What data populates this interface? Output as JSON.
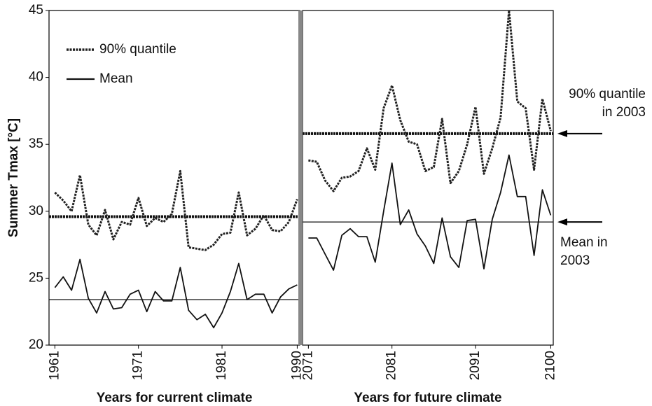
{
  "chart_data": [
    {
      "type": "line",
      "ylabel": "Summer Tmax [°C]",
      "xlabel": "Years for current climate",
      "x": [
        1961,
        1962,
        1963,
        1964,
        1965,
        1966,
        1967,
        1968,
        1969,
        1970,
        1971,
        1972,
        1973,
        1974,
        1975,
        1976,
        1977,
        1978,
        1979,
        1980,
        1981,
        1982,
        1983,
        1984,
        1985,
        1986,
        1987,
        1988,
        1989,
        1990
      ],
      "xlim": [
        1960.3,
        1990.3
      ],
      "xticks": [
        1961,
        1971,
        1981,
        1990
      ],
      "ylim": [
        20,
        45
      ],
      "yticks": [
        20,
        25,
        30,
        35,
        40,
        45
      ],
      "series": [
        {
          "name": "90% quantile",
          "color": "#222222",
          "style": "dotted",
          "values": [
            31.4,
            30.8,
            30.0,
            32.7,
            29.0,
            28.2,
            30.1,
            27.9,
            29.2,
            29.0,
            31.0,
            28.9,
            29.5,
            29.2,
            29.8,
            33.0,
            27.3,
            27.2,
            27.1,
            27.5,
            28.3,
            28.4,
            31.4,
            28.2,
            28.7,
            29.7,
            28.6,
            28.5,
            29.2,
            30.9
          ]
        },
        {
          "name": "Mean",
          "color": "#111111",
          "style": "solid",
          "values": [
            24.3,
            25.1,
            24.1,
            26.4,
            23.5,
            22.4,
            24.0,
            22.7,
            22.8,
            23.8,
            24.1,
            22.5,
            24.0,
            23.3,
            23.3,
            25.8,
            22.6,
            21.9,
            22.3,
            21.3,
            22.4,
            24.0,
            26.1,
            23.4,
            23.8,
            23.8,
            22.4,
            23.6,
            24.2,
            24.5
          ]
        }
      ],
      "reference_lines": [
        {
          "value": 29.6,
          "style": "dotted"
        },
        {
          "value": 23.4,
          "style": "solid"
        }
      ]
    },
    {
      "type": "line",
      "xlabel": "Years for future climate",
      "x": [
        2071,
        2072,
        2073,
        2074,
        2075,
        2076,
        2077,
        2078,
        2079,
        2080,
        2081,
        2082,
        2083,
        2084,
        2085,
        2086,
        2087,
        2088,
        2089,
        2090,
        2091,
        2092,
        2093,
        2094,
        2095,
        2096,
        2097,
        2098,
        2099,
        2100
      ],
      "xlim": [
        2070.3,
        2100.3
      ],
      "xticks": [
        2071,
        2081,
        2091,
        2100
      ],
      "ylim": [
        20,
        45
      ],
      "series": [
        {
          "color": "#222222",
          "style": "dotted",
          "values": [
            33.8,
            33.7,
            32.3,
            31.5,
            32.5,
            32.6,
            33.0,
            34.7,
            33.1,
            37.7,
            39.4,
            36.8,
            35.2,
            35.0,
            33.0,
            33.3,
            36.9,
            32.1,
            33.0,
            35.0,
            37.8,
            32.8,
            34.7,
            37.0,
            45.0,
            38.2,
            37.7,
            33.1,
            38.4,
            36.0
          ]
        },
        {
          "color": "#111111",
          "style": "solid",
          "values": [
            28.0,
            28.0,
            26.8,
            25.6,
            28.2,
            28.7,
            28.1,
            28.1,
            26.2,
            30.0,
            33.6,
            29.0,
            30.1,
            28.3,
            27.4,
            26.1,
            29.5,
            26.6,
            25.8,
            29.3,
            29.4,
            25.7,
            29.4,
            31.4,
            34.2,
            31.1,
            31.1,
            26.7,
            31.6,
            29.7
          ]
        }
      ],
      "reference_lines": [
        {
          "value": 35.8,
          "style": "dotted",
          "label": [
            "90% quantile",
            "in 2003"
          ]
        },
        {
          "value": 29.2,
          "style": "solid",
          "label": [
            "Mean in",
            "2003"
          ]
        }
      ]
    }
  ]
}
